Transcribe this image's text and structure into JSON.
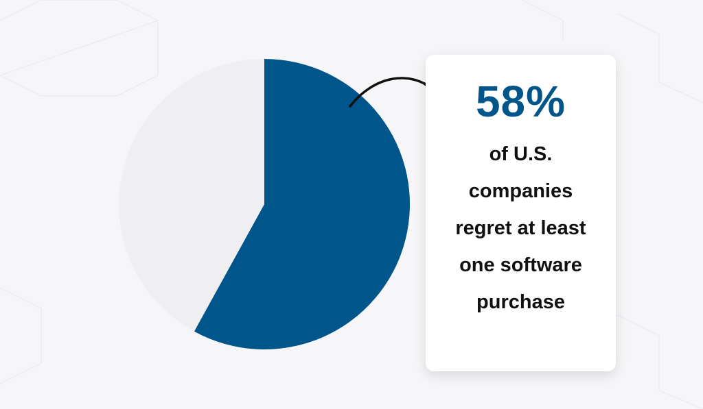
{
  "chart_data": {
    "type": "pie",
    "categories": [
      null,
      null
    ],
    "values": [
      58,
      42
    ],
    "value_labels": [
      "58%",
      null
    ],
    "colors": [
      "#00558a",
      "#efeff2"
    ],
    "annotation": "of U.S. companies regret at least one software purchase"
  }
}
